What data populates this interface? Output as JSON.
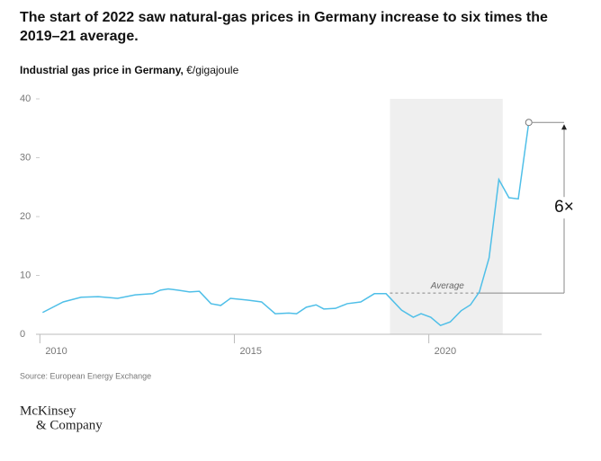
{
  "chart_data": {
    "type": "line",
    "title": [
      "The start of 2022 saw natural-gas prices in Germany increase to six times the",
      "2019–21 average."
    ],
    "axis_label": "Industrial gas price in Germany,",
    "unit": "€/gigajoule",
    "x": [
      2010.07,
      2010.6,
      2011.06,
      2011.5,
      2012.0,
      2012.45,
      2012.9,
      2013.1,
      2013.3,
      2013.55,
      2013.85,
      2014.1,
      2014.4,
      2014.65,
      2014.9,
      2015.35,
      2015.7,
      2016.05,
      2016.4,
      2016.6,
      2016.85,
      2017.1,
      2017.3,
      2017.6,
      2017.9,
      2018.25,
      2018.6,
      2018.9,
      2019.3,
      2019.6,
      2019.8,
      2020.05,
      2020.3,
      2020.55,
      2020.83,
      2021.07,
      2021.3,
      2021.55,
      2021.8,
      2022.06,
      2022.3,
      2022.57
    ],
    "series": [
      {
        "name": "Industrial gas price",
        "color": "#4fbfe8",
        "values": [
          3.7,
          5.5,
          6.3,
          6.4,
          6.1,
          6.7,
          6.9,
          7.5,
          7.7,
          7.5,
          7.2,
          7.3,
          5.2,
          4.9,
          6.1,
          5.8,
          5.5,
          3.5,
          3.6,
          3.5,
          4.6,
          5.0,
          4.3,
          4.4,
          5.2,
          5.5,
          6.9,
          6.9,
          4.1,
          2.9,
          3.5,
          2.9,
          1.5,
          2.1,
          4.0,
          5.0,
          7.2,
          13.0,
          26.3,
          23.2,
          23.0,
          36.0
        ]
      }
    ],
    "xlim": [
      2009.9,
      2022.9
    ],
    "xticks": [
      2010,
      2015,
      2020
    ],
    "ylim": [
      0,
      40
    ],
    "yticks": [
      0,
      10,
      20,
      30,
      40
    ],
    "shaded_range": [
      2019.0,
      2021.9
    ],
    "average": {
      "label": "Average",
      "value": 7
    },
    "annotation": "6×",
    "source": "Source: European Energy Exchange",
    "logo": [
      "McKinsey",
      "& Company"
    ]
  }
}
